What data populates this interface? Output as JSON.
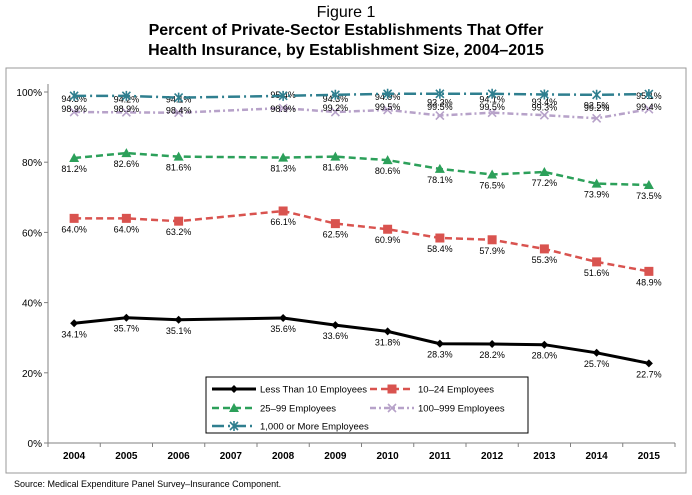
{
  "figure_label": "Figure 1",
  "title_line1": "Percent of Private-Sector Establishments That Offer",
  "title_line2": "Health Insurance, by Establishment Size, 2004–2015",
  "source": "Source: Medical Expenditure Panel Survey–Insurance Component.",
  "chart_data": {
    "type": "line",
    "title": "Percent of Private-Sector Establishments That Offer Health Insurance, by Establishment Size, 2004–2015",
    "x": [
      2004,
      2005,
      2006,
      2007,
      2008,
      2009,
      2010,
      2011,
      2012,
      2013,
      2014,
      2015
    ],
    "xlabel": "",
    "ylabel": "",
    "ylim": [
      0,
      100
    ],
    "y_ticks": [
      "0%",
      "20%",
      "40%",
      "60%",
      "80%",
      "100%"
    ],
    "grid": false,
    "legend_position": "bottom-center",
    "series": [
      {
        "name": "Less Than 10 Employees",
        "color": "#000000",
        "marker": "diamond",
        "dash": "solid",
        "values": [
          34.1,
          35.7,
          35.1,
          null,
          35.6,
          33.6,
          31.8,
          28.3,
          28.2,
          28.0,
          25.7,
          22.7
        ],
        "labels": [
          "34.1%",
          "35.7%",
          "35.1%",
          "",
          "35.6%",
          "33.6%",
          "31.8%",
          "28.3%",
          "28.2%",
          "28.0%",
          "25.7%",
          "22.7%"
        ]
      },
      {
        "name": "10–24 Employees",
        "color": "#d9534f",
        "marker": "square",
        "dash": "dashed",
        "values": [
          64.0,
          64.0,
          63.2,
          null,
          66.1,
          62.5,
          60.9,
          58.4,
          57.9,
          55.3,
          51.6,
          48.9
        ],
        "labels": [
          "64.0%",
          "64.0%",
          "63.2%",
          "",
          "66.1%",
          "62.5%",
          "60.9%",
          "58.4%",
          "57.9%",
          "55.3%",
          "51.6%",
          "48.9%"
        ]
      },
      {
        "name": "25–99 Employees",
        "color": "#2ca05a",
        "marker": "triangle",
        "dash": "dashed",
        "values": [
          81.2,
          82.6,
          81.6,
          null,
          81.3,
          81.6,
          80.6,
          78.1,
          76.5,
          77.2,
          73.9,
          73.5
        ],
        "labels": [
          "81.2%",
          "82.6%",
          "81.6%",
          "",
          "81.3%",
          "81.6%",
          "80.6%",
          "78.1%",
          "76.5%",
          "77.2%",
          "73.9%",
          "73.5%"
        ]
      },
      {
        "name": "100–999 Employees",
        "color": "#b7a2c9",
        "marker": "x",
        "dash": "dashdot",
        "values": [
          94.3,
          94.2,
          94.1,
          null,
          95.4,
          94.3,
          94.9,
          93.3,
          94.1,
          93.4,
          92.5,
          95.1
        ],
        "labels": [
          "94.3%",
          "94.2%",
          "94.1%",
          "",
          "95.4%",
          "94.3%",
          "94.9%",
          "93.3%",
          "94.1%",
          "93.4%",
          "92.5%",
          "95.1%"
        ]
      },
      {
        "name": "1,000 or More Employees",
        "color": "#2f7f8f",
        "marker": "asterisk",
        "dash": "longdashdot",
        "values": [
          98.9,
          98.9,
          98.4,
          null,
          98.9,
          99.2,
          99.5,
          99.5,
          99.5,
          99.3,
          99.2,
          99.4
        ],
        "labels": [
          "98.9%",
          "98.9%",
          "98.4%",
          "",
          "98.9%",
          "99.2%",
          "99.5%",
          "99.5%",
          "99.5%",
          "99.3%",
          "99.2%",
          "99.4%"
        ]
      }
    ]
  }
}
